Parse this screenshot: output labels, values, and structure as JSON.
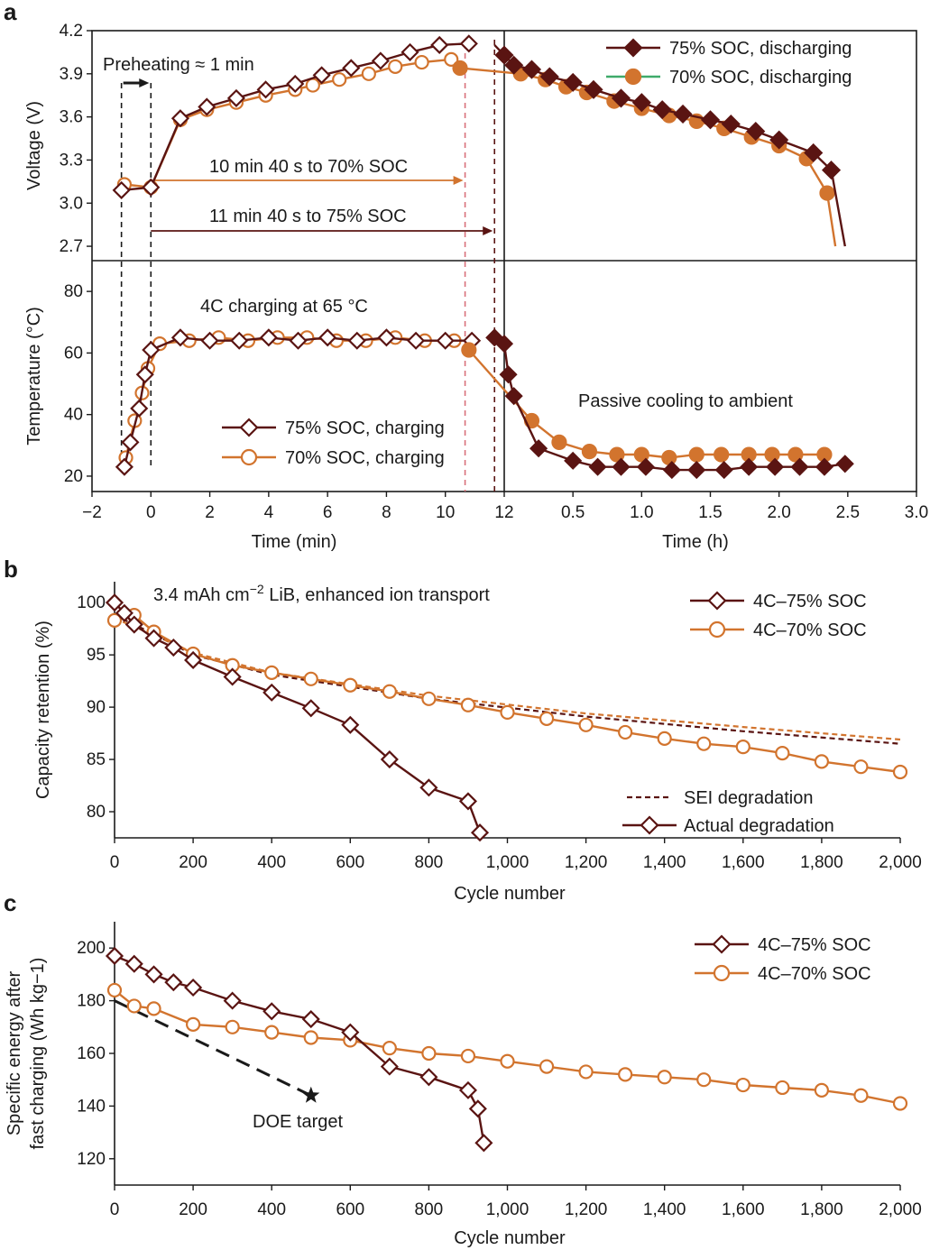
{
  "colors": {
    "dark": "#5a1412",
    "orange": "#d2742e",
    "pink": "#d9707a",
    "black": "#1a1a1a",
    "green": "#3faa6a"
  },
  "panel_labels": {
    "a": "a",
    "b": "b",
    "c": "c"
  },
  "annotations": {
    "preheat": "Preheating ≈ 1 min",
    "to70": "10 min 40 s to 70% SOC",
    "to75": "11 min 40 s to 75% SOC",
    "charging": "4C charging at 65 °C",
    "cooling": "Passive cooling to ambient",
    "doe": "DOE target",
    "cell_b": "3.4 mAh cm",
    "cell_sup": "−2",
    "cell_rest": " LiB, enhanced ion transport"
  },
  "chart_data": [
    {
      "id": "a-voltage",
      "type": "line",
      "ylabel": "Voltage (V)",
      "ylim": [
        2.6,
        4.2
      ],
      "yticks": [
        2.7,
        3.0,
        3.3,
        3.6,
        3.9,
        4.2
      ],
      "ytick_labels": [
        "2.7",
        "3.0",
        "3.3",
        "3.6",
        "3.9",
        "4.2"
      ],
      "left_xlim_min": [
        -2,
        12
      ],
      "right_xlim_h": [
        0,
        3.0
      ],
      "legend": [
        "75% SOC, discharging",
        "70% SOC, discharging"
      ],
      "series": [
        {
          "name": "75% SOC, charging",
          "x_min": [
            -1,
            0,
            1,
            1.9,
            2.9,
            3.9,
            4.9,
            5.8,
            6.8,
            7.8,
            8.8,
            9.8,
            10.8
          ],
          "values": [
            3.09,
            3.11,
            3.59,
            3.67,
            3.73,
            3.79,
            3.83,
            3.89,
            3.94,
            3.99,
            4.05,
            4.1,
            4.11
          ]
        },
        {
          "name": "70% SOC, charging",
          "x_min": [
            -0.9,
            0,
            1,
            1.9,
            2.9,
            3.9,
            4.9,
            5.5,
            6.4,
            7.4,
            8.3,
            9.2,
            10.2
          ],
          "values": [
            3.13,
            3.11,
            3.58,
            3.65,
            3.7,
            3.75,
            3.79,
            3.82,
            3.86,
            3.9,
            3.95,
            3.98,
            4.0
          ]
        },
        {
          "name": "75% SOC, discharging",
          "x_h": [
            0.0,
            0.07,
            0.2,
            0.33,
            0.5,
            0.65,
            0.85,
            1.0,
            1.15,
            1.3,
            1.5,
            1.65,
            1.83,
            2.0,
            2.25,
            2.38
          ],
          "values": [
            4.03,
            3.96,
            3.93,
            3.88,
            3.84,
            3.79,
            3.73,
            3.7,
            3.65,
            3.62,
            3.58,
            3.55,
            3.5,
            3.44,
            3.35,
            3.23
          ]
        },
        {
          "name": "70% SOC, discharging",
          "x_h": [
            -0.15,
            0.12,
            0.3,
            0.45,
            0.6,
            0.8,
            1.0,
            1.2,
            1.4,
            1.6,
            1.8,
            2.0,
            2.2,
            2.35
          ],
          "values": [
            3.94,
            3.9,
            3.86,
            3.81,
            3.77,
            3.71,
            3.66,
            3.61,
            3.57,
            3.52,
            3.46,
            3.4,
            3.31,
            3.07
          ]
        }
      ]
    },
    {
      "id": "a-temperature",
      "type": "line",
      "ylabel": "Temperature (°C)",
      "ylim": [
        15,
        90
      ],
      "yticks": [
        20,
        40,
        60,
        80
      ],
      "ytick_labels": [
        "20",
        "40",
        "60",
        "80"
      ],
      "left_xlim_min": [
        -2,
        12
      ],
      "right_xlim_h": [
        0,
        3.0
      ],
      "xticks_left": [
        "−2",
        "0",
        "2",
        "4",
        "6",
        "8",
        "10",
        "12"
      ],
      "xticks_right": [
        "0.5",
        "1.0",
        "1.5",
        "2.0",
        "2.5",
        "3.0"
      ],
      "xlabel_left": "Time (min)",
      "xlabel_right": "Time (h)",
      "legend": [
        "75% SOC, charging",
        "70% SOC, charging"
      ],
      "series": [
        {
          "name": "75% SOC, charging",
          "x_min": [
            -0.9,
            -0.7,
            -0.4,
            -0.2,
            0,
            1,
            2,
            3,
            4,
            5,
            6,
            7,
            8,
            9,
            10,
            10.9
          ],
          "values": [
            23,
            31,
            42,
            53,
            61,
            65,
            64,
            64,
            65,
            64,
            65,
            64,
            65,
            64,
            64,
            64
          ]
        },
        {
          "name": "70% SOC, charging",
          "x_min": [
            -0.85,
            -0.55,
            -0.3,
            -0.1,
            0.3,
            1.3,
            2.3,
            3.3,
            4.3,
            5.3,
            6.3,
            7.3,
            8.3,
            9.3,
            10.3
          ],
          "values": [
            26,
            38,
            47,
            55,
            63,
            64,
            65,
            64,
            65,
            65,
            64,
            64,
            65,
            64,
            64
          ]
        },
        {
          "name": "75% SOC, discharging",
          "x_h": [
            -0.1,
            0.0,
            0.03,
            0.07,
            0.25,
            0.5,
            0.68,
            0.85,
            1.03,
            1.22,
            1.4,
            1.6,
            1.78,
            1.97,
            2.15,
            2.33,
            2.48
          ],
          "values": [
            65,
            63,
            53,
            46,
            29,
            25,
            23,
            23,
            23,
            22,
            22,
            22,
            23,
            23,
            23,
            23,
            24
          ]
        },
        {
          "name": "70% SOC, discharging",
          "x_h": [
            -0.15,
            0.2,
            0.4,
            0.62,
            0.82,
            1.0,
            1.2,
            1.4,
            1.58,
            1.78,
            1.95,
            2.12,
            2.33
          ],
          "values": [
            61,
            38,
            31,
            28,
            27,
            27,
            26,
            27,
            27,
            27,
            27,
            27,
            27
          ]
        }
      ]
    },
    {
      "id": "b",
      "type": "line",
      "title": "3.4 mAh cm−2 LiB, enhanced ion transport",
      "xlabel": "Cycle number",
      "ylabel": "Capacity retention (%)",
      "xlim": [
        0,
        2000
      ],
      "ylim": [
        77.5,
        102
      ],
      "yticks": [
        80,
        85,
        90,
        95,
        100
      ],
      "ytick_labels": [
        "80",
        "85",
        "90",
        "95",
        "100"
      ],
      "xticks": [
        0,
        200,
        400,
        600,
        800,
        1000,
        1200,
        1400,
        1600,
        1800,
        2000
      ],
      "xtick_labels": [
        "0",
        "200",
        "400",
        "600",
        "800",
        "1,000",
        "1,200",
        "1,400",
        "1,600",
        "1,800",
        "2,000"
      ],
      "legend": [
        "4C–75% SOC",
        "4C–70% SOC"
      ],
      "legend_lines": [
        "SEI degradation",
        "Actual degradation"
      ],
      "series": [
        {
          "name": "4C–75% SOC",
          "x": [
            0,
            25,
            50,
            100,
            150,
            200,
            300,
            400,
            500,
            600,
            700,
            800,
            900,
            930
          ],
          "values": [
            100,
            99,
            97.9,
            96.6,
            95.7,
            94.5,
            92.9,
            91.4,
            89.9,
            88.3,
            85,
            82.3,
            81,
            78
          ]
        },
        {
          "name": "4C–70% SOC",
          "x": [
            0,
            50,
            100,
            200,
            300,
            400,
            500,
            600,
            700,
            800,
            900,
            1000,
            1100,
            1200,
            1300,
            1400,
            1500,
            1600,
            1700,
            1800,
            1900,
            2000
          ],
          "values": [
            98.3,
            98.8,
            97.2,
            95.1,
            94,
            93.3,
            92.7,
            92.1,
            91.5,
            90.8,
            90.2,
            89.5,
            88.9,
            88.3,
            87.6,
            87.0,
            86.5,
            86.2,
            85.6,
            84.8,
            84.3,
            83.8
          ]
        },
        {
          "name": "SEI degradation (75%)",
          "x": [
            0,
            100,
            200,
            400,
            800,
            1200,
            1600,
            2000
          ],
          "values": [
            98.8,
            97,
            95,
            93.1,
            90.8,
            89.1,
            87.7,
            86.5
          ]
        },
        {
          "name": "SEI degradation (70%)",
          "x": [
            0,
            100,
            200,
            400,
            800,
            1200,
            1600,
            2000
          ],
          "values": [
            98.5,
            96.9,
            95.2,
            93.3,
            91.1,
            89.4,
            88.1,
            86.9
          ]
        }
      ]
    },
    {
      "id": "c",
      "type": "line",
      "xlabel": "Cycle number",
      "ylabel": [
        "Specific energy after",
        "fast charging (Wh kg−1)"
      ],
      "xlim": [
        0,
        2000
      ],
      "ylim": [
        110,
        210
      ],
      "yticks": [
        120,
        140,
        160,
        180,
        200
      ],
      "ytick_labels": [
        "120",
        "140",
        "160",
        "180",
        "200"
      ],
      "xticks": [
        0,
        200,
        400,
        600,
        800,
        1000,
        1200,
        1400,
        1600,
        1800,
        2000
      ],
      "xtick_labels": [
        "0",
        "200",
        "400",
        "600",
        "800",
        "1,000",
        "1,200",
        "1,400",
        "1,600",
        "1,800",
        "2,000"
      ],
      "legend": [
        "4C–75% SOC",
        "4C–70% SOC"
      ],
      "series": [
        {
          "name": "4C–75% SOC",
          "x": [
            0,
            50,
            100,
            150,
            200,
            300,
            400,
            500,
            600,
            700,
            800,
            900,
            925,
            940
          ],
          "values": [
            197,
            194,
            190,
            187,
            185,
            180,
            176,
            173,
            168,
            155,
            151,
            146,
            139,
            126
          ]
        },
        {
          "name": "4C–70% SOC",
          "x": [
            0,
            50,
            100,
            200,
            300,
            400,
            500,
            600,
            700,
            800,
            900,
            1000,
            1100,
            1200,
            1300,
            1400,
            1500,
            1600,
            1700,
            1800,
            1900,
            2000
          ],
          "values": [
            184,
            178,
            177,
            171,
            170,
            168,
            166,
            165,
            162,
            160,
            159,
            157,
            155,
            153,
            152,
            151,
            150,
            148,
            147,
            146,
            144,
            141
          ]
        },
        {
          "name": "DOE target line",
          "x": [
            0,
            500
          ],
          "values": [
            180,
            144
          ]
        }
      ]
    }
  ]
}
